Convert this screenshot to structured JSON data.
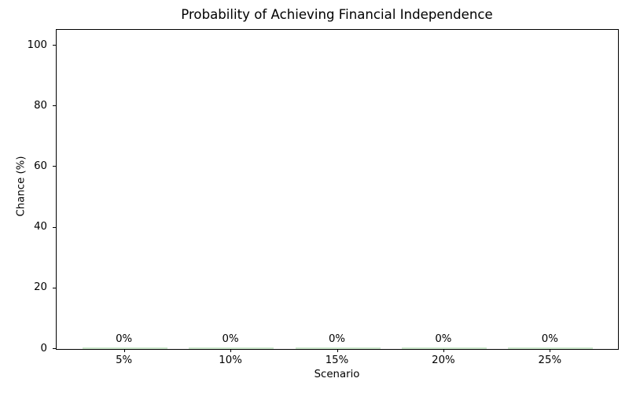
{
  "chart_data": {
    "type": "bar",
    "title": "Probability of Achieving Financial Independence",
    "xlabel": "Scenario",
    "ylabel": "Chance (%)",
    "categories": [
      "5%",
      "10%",
      "15%",
      "20%",
      "25%"
    ],
    "values": [
      0,
      0,
      0,
      0,
      0
    ],
    "bar_labels": [
      "0%",
      "0%",
      "0%",
      "0%",
      "0%"
    ],
    "yticks": [
      0,
      20,
      40,
      60,
      80,
      100
    ],
    "ylim": [
      0,
      105.2
    ],
    "grid": false,
    "legend": null,
    "bar_color": "#cde9cd",
    "axis_color": "#000000",
    "text_color": "#000000",
    "background_color": "#ffffff"
  }
}
